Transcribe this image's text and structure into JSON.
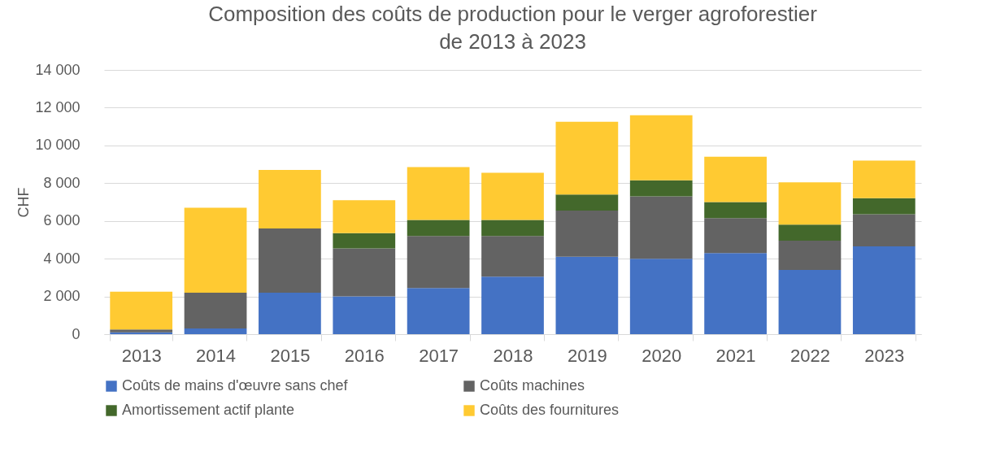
{
  "chart_data": {
    "type": "bar",
    "stacked": true,
    "title": "Composition des coûts de production pour le verger agroforestier de 2013 à 2023",
    "ylabel": "CHF",
    "categories": [
      "2013",
      "2014",
      "2015",
      "2016",
      "2017",
      "2018",
      "2019",
      "2020",
      "2021",
      "2022",
      "2023"
    ],
    "series": [
      {
        "name": "Coûts de mains d'œuvre sans chef",
        "color": "#4472c4",
        "values": [
          100,
          300,
          2200,
          2000,
          2450,
          3050,
          4100,
          4000,
          4300,
          3400,
          4650
        ]
      },
      {
        "name": "Coûts machines",
        "color": "#636363",
        "values": [
          150,
          1900,
          3400,
          2550,
          2750,
          2150,
          2450,
          3300,
          1850,
          1550,
          1700
        ]
      },
      {
        "name": "Amortissement actif plante",
        "color": "#43682b",
        "values": [
          0,
          0,
          0,
          800,
          850,
          850,
          850,
          850,
          850,
          850,
          850
        ]
      },
      {
        "name": "Coûts des fournitures",
        "color": "#ffca32",
        "values": [
          2000,
          4500,
          3100,
          1750,
          2800,
          2500,
          3850,
          3450,
          2400,
          2250,
          2000
        ]
      }
    ],
    "ylim": [
      0,
      14000
    ],
    "yticks": [
      0,
      {
        "value": 2000,
        "label": "2 000"
      },
      {
        "value": 4000,
        "label": "4 000"
      },
      {
        "value": 6000,
        "label": "6 000"
      },
      {
        "value": 8000,
        "label": "8 000"
      },
      {
        "value": 10000,
        "label": "10 000"
      },
      {
        "value": 12000,
        "label": "12 000"
      },
      {
        "value": 14000,
        "label": "14 000"
      }
    ],
    "grid": "y",
    "legend": "bottom"
  }
}
